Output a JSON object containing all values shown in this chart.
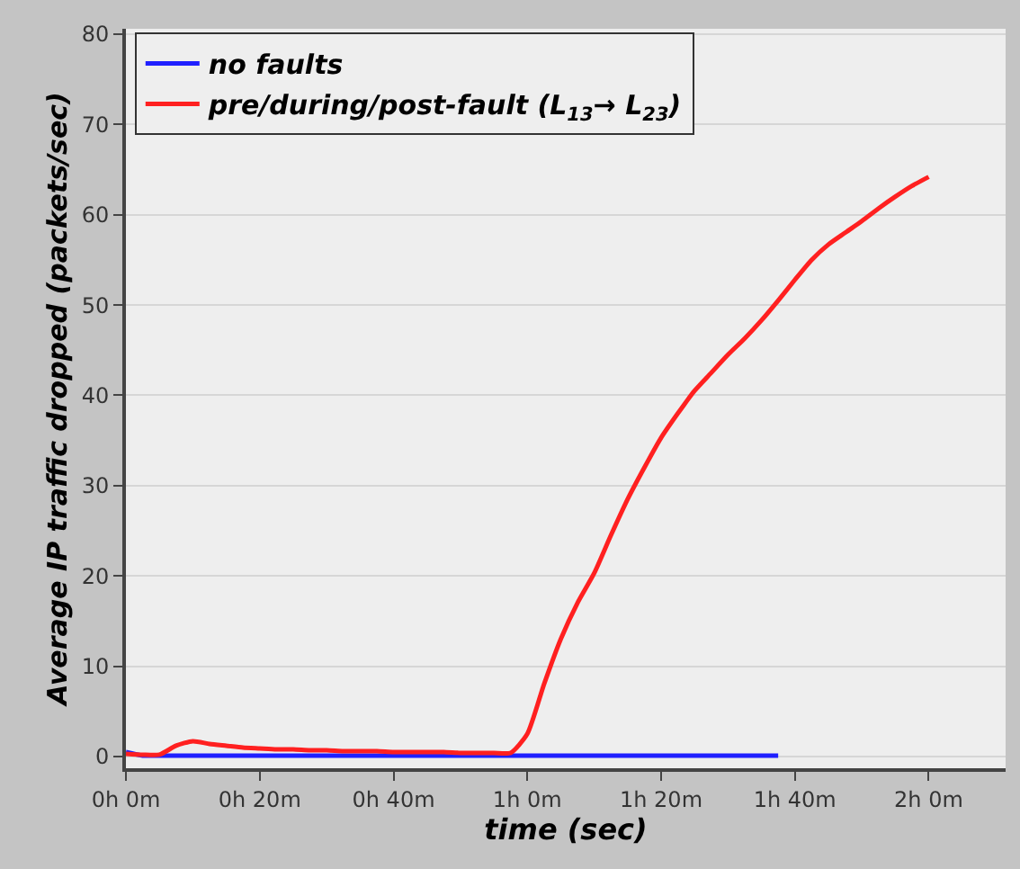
{
  "chart_data": {
    "type": "line",
    "xlabel": "time (sec)",
    "ylabel": "Average IP traffic dropped (packets/sec)",
    "categories": [
      "0h 0m",
      null,
      null,
      null,
      null,
      null,
      null,
      null,
      "0h 20m",
      null,
      null,
      null,
      null,
      null,
      null,
      null,
      "0h 40m",
      null,
      null,
      null,
      null,
      null,
      null,
      null,
      "1h 0m",
      null,
      null,
      null,
      null,
      null,
      null,
      null,
      "1h 20m",
      null,
      null,
      null,
      null,
      null,
      null,
      null,
      "1h 40m",
      null,
      null,
      null,
      null,
      null,
      null,
      null,
      "2h 0m",
      null,
      null,
      null,
      null
    ],
    "ylim": [
      -1.3,
      80.6
    ],
    "yticks": [
      0,
      10,
      20,
      30,
      40,
      50,
      60,
      70,
      80
    ],
    "grid": "y",
    "legend": "top left",
    "marker": "none",
    "line_style": "solid",
    "series": [
      {
        "name": "no faults",
        "color": "#2020ff",
        "values": [
          0.5,
          0.1,
          0.1,
          0.1,
          0.1,
          0.1,
          0.1,
          0.1,
          0.1,
          0.1,
          0.1,
          0.1,
          0.1,
          0.1,
          0.1,
          0.1,
          0.1,
          0.1,
          0.1,
          0.1,
          0.1,
          0.1,
          0.1,
          0.1,
          0.1,
          0.1,
          0.1,
          0.1,
          0.1,
          0.1,
          0.1,
          0.1,
          0.1,
          0.1,
          0.1,
          0.1,
          0.1,
          0.1,
          0.1,
          0.1,
          null,
          null,
          null,
          null,
          null,
          null,
          null,
          null,
          null,
          null,
          null,
          null,
          null
        ]
      },
      {
        "name": "pre/during/post-fault (L$_{13}$→ L$_{23}$)",
        "color": "#ff2020",
        "values": [
          0.3,
          0.2,
          0.2,
          1.2,
          1.7,
          1.4,
          1.2,
          1.0,
          0.9,
          0.8,
          0.8,
          0.7,
          0.7,
          0.6,
          0.6,
          0.6,
          0.5,
          0.5,
          0.5,
          0.5,
          0.4,
          0.4,
          0.4,
          0.4,
          2.5,
          8,
          13,
          17,
          20.3,
          24.5,
          28.5,
          32,
          35.3,
          38,
          40.5,
          42.5,
          44.5,
          46.3,
          48.3,
          50.5,
          52.8,
          55,
          56.7,
          58,
          59.3,
          60.7,
          62,
          63.2,
          64.2,
          null,
          null,
          null,
          null
        ]
      }
    ]
  }
}
